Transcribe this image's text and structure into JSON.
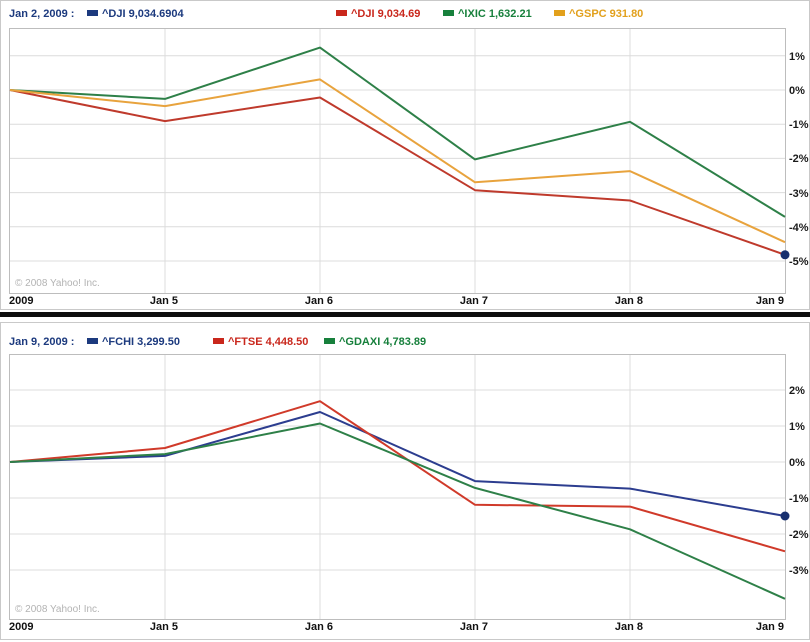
{
  "page": {
    "background": "#ffffff",
    "separator_color": "#0d0d0d",
    "gridline_color": "#dcdcdc",
    "border_color": "#c9c9c9"
  },
  "charts": [
    {
      "name": "us-indices-performance",
      "date_label": "Jan 2, 2009 :",
      "marker_legend": {
        "label": "^DJI 9,034.6904",
        "color": "#1c3a7e"
      },
      "legend": [
        {
          "label": "^DJI 9,034.69",
          "color": "#c9271c"
        },
        {
          "label": "^IXIC 1,632.21",
          "color": "#17803c"
        },
        {
          "label": "^GSPC 931.80",
          "color": "#e2a01c"
        }
      ],
      "copyright": "© 2008 Yahoo! Inc.",
      "chart_data": {
        "type": "line",
        "x": [
          "2009",
          "Jan 5",
          "Jan 6",
          "Jan 7",
          "Jan 8",
          "Jan 9"
        ],
        "y_unit": "percent change since Jan 2, 2009",
        "y_ticks": [
          1,
          0,
          -1,
          -2,
          -3,
          -4,
          -5
        ],
        "y_tick_labels": [
          "1%",
          "0%",
          "-1%",
          "-2%",
          "-3%",
          "-4%",
          "-5%"
        ],
        "ylim": [
          -5.8,
          1.8
        ],
        "grid": true,
        "legend_position": "top",
        "series": [
          {
            "name": "^DJI",
            "color": "#bf3a2c",
            "values": [
              0,
              -0.91,
              -0.22,
              -2.93,
              -3.23,
              -4.82
            ]
          },
          {
            "name": "^IXIC",
            "color": "#2e8048",
            "values": [
              0,
              -0.26,
              1.24,
              -2.03,
              -0.93,
              -3.71
            ]
          },
          {
            "name": "^GSPC",
            "color": "#e8a33d",
            "values": [
              0,
              -0.47,
              0.31,
              -2.7,
              -2.37,
              -4.45
            ]
          }
        ],
        "end_marker": {
          "series_index": 0,
          "color": "#18306f"
        }
      }
    },
    {
      "name": "european-indices-performance",
      "date_label": "Jan 9, 2009 :",
      "marker_legend": {
        "label": "^FCHI 3,299.50",
        "color": "#1c3a7e"
      },
      "legend": [
        {
          "label": "^FTSE 4,448.50",
          "color": "#c9271c"
        },
        {
          "label": "^GDAXI 4,783.89",
          "color": "#17803c"
        }
      ],
      "copyright": "© 2008 Yahoo! Inc.",
      "chart_data": {
        "type": "line",
        "x": [
          "2009",
          "Jan 5",
          "Jan 6",
          "Jan 7",
          "Jan 8",
          "Jan 9"
        ],
        "y_unit": "percent change since Jan 2, 2009",
        "y_ticks": [
          2,
          1,
          0,
          -1,
          -2,
          -3
        ],
        "y_tick_labels": [
          "2%",
          "1%",
          "0%",
          "-1%",
          "-2%",
          "-3%"
        ],
        "ylim": [
          -4.4,
          2.9
        ],
        "grid": true,
        "legend_position": "top",
        "series": [
          {
            "name": "^FCHI",
            "color": "#2c3d8f",
            "values": [
              0,
              0.17,
              1.39,
              -0.53,
              -0.74,
              -1.5
            ]
          },
          {
            "name": "^FTSE",
            "color": "#d03a2a",
            "values": [
              0,
              0.39,
              1.69,
              -1.19,
              -1.24,
              -2.48
            ]
          },
          {
            "name": "^GDAXI",
            "color": "#2e8048",
            "values": [
              0,
              0.22,
              1.07,
              -0.72,
              -1.87,
              -3.8
            ]
          }
        ],
        "end_marker": {
          "series_index": 0,
          "color": "#18306f"
        }
      }
    }
  ]
}
